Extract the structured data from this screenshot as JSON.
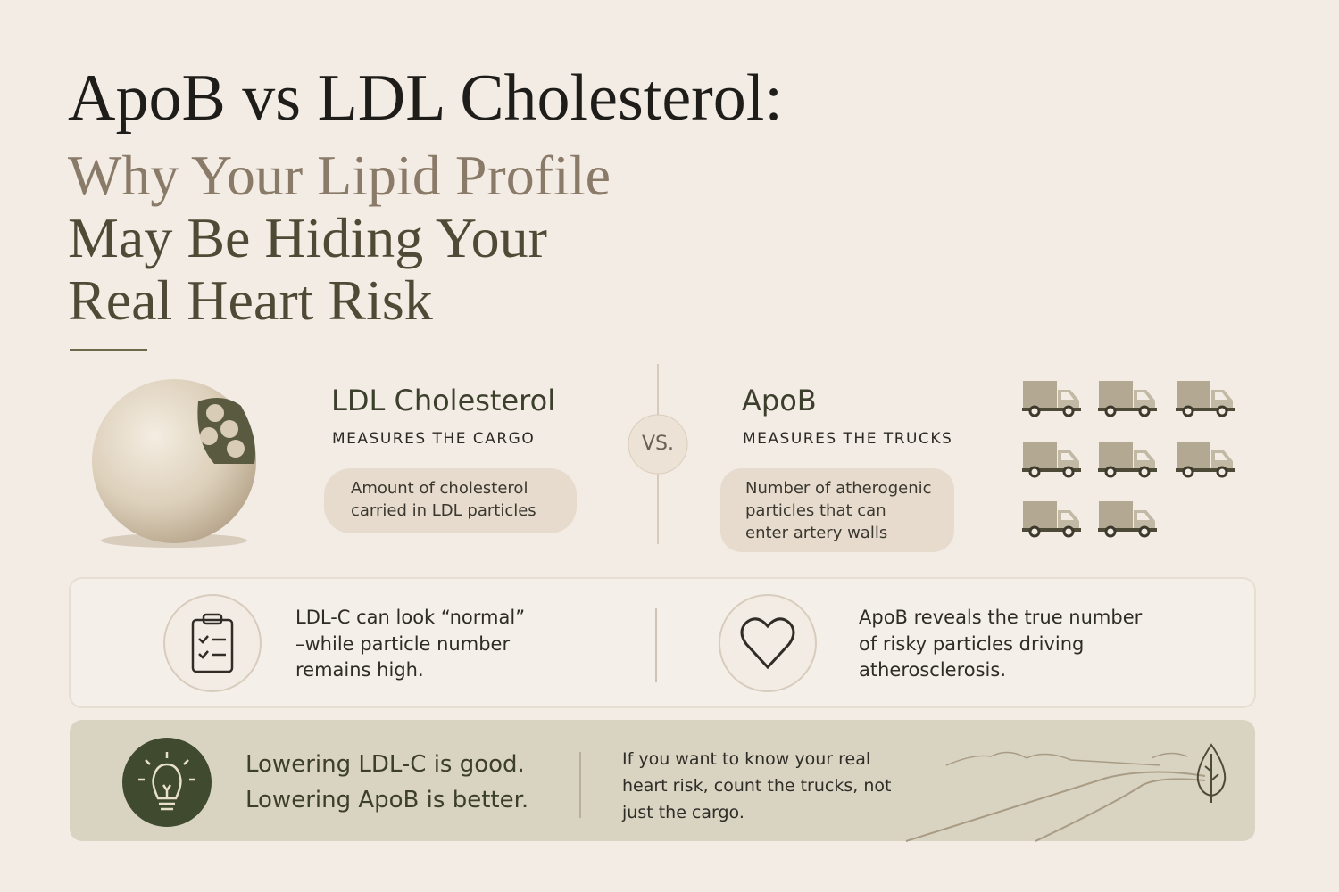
{
  "header": {
    "title": "ApoB vs LDL Cholesterol:",
    "subtitle_lines": [
      "Why Your Lipid Profile",
      "May Be Hiding Your",
      "Real Heart Risk"
    ]
  },
  "comparison": {
    "left": {
      "title": "LDL Cholesterol",
      "subtitle": "MEASURES THE CARGO",
      "description_lines": [
        "Amount of cholesterol",
        "carried in LDL particles"
      ]
    },
    "vs": "VS.",
    "right": {
      "title": "ApoB",
      "subtitle": "MEASURES THE TRUCKS",
      "description_lines": [
        "Number of atherogenic",
        "particles that can",
        "enter artery walls"
      ]
    }
  },
  "insights": [
    {
      "lines": [
        "LDL-C can look “normal”",
        "–while particle number",
        "remains high."
      ]
    },
    {
      "lines": [
        "ApoB reveals the true number",
        "of risky particles driving",
        "atherosclerosis."
      ]
    }
  ],
  "takeaway": {
    "headline_lines": [
      "Lowering LDL-C is good.",
      "Lowering ApoB is better."
    ],
    "detail_lines": [
      "If you want to know your real",
      "heart risk, count the trucks, not",
      "just the cargo."
    ]
  }
}
